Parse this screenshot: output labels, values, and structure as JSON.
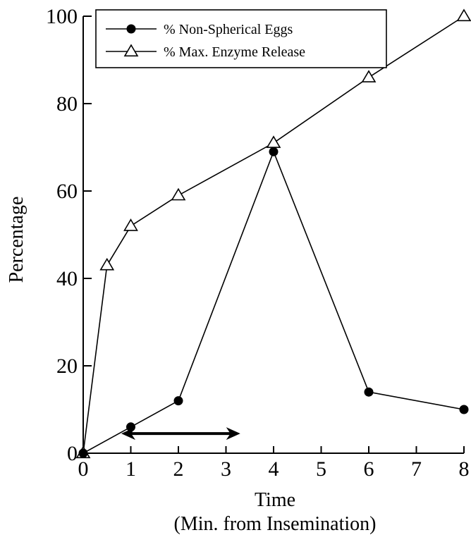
{
  "chart_data": {
    "type": "line",
    "title": "",
    "xlabel": "Time",
    "xlabel_line2": "(Min. from Insemination)",
    "ylabel": "Percentage",
    "xlim": [
      0,
      8
    ],
    "ylim": [
      0,
      100
    ],
    "x_ticks": [
      "0",
      "1",
      "2",
      "3",
      "4",
      "5",
      "6",
      "7",
      "8"
    ],
    "y_ticks": [
      "0",
      "20",
      "40",
      "60",
      "80",
      "100"
    ],
    "grid": false,
    "legend_position": "top-left",
    "series": [
      {
        "name": "% Non-Spherical Eggs",
        "marker": "filled-circle",
        "x": [
          0,
          1,
          2,
          4,
          6,
          8
        ],
        "y": [
          0,
          6,
          12,
          69,
          14,
          10
        ]
      },
      {
        "name": "% Max. Enzyme Release",
        "marker": "open-triangle",
        "x": [
          0,
          0.5,
          1,
          2,
          4,
          6,
          8
        ],
        "y": [
          0,
          43,
          52,
          59,
          71,
          86,
          100
        ]
      }
    ],
    "annotation": {
      "type": "double-arrow",
      "x_range": [
        0.8,
        3.3
      ],
      "y": 4.5
    }
  }
}
